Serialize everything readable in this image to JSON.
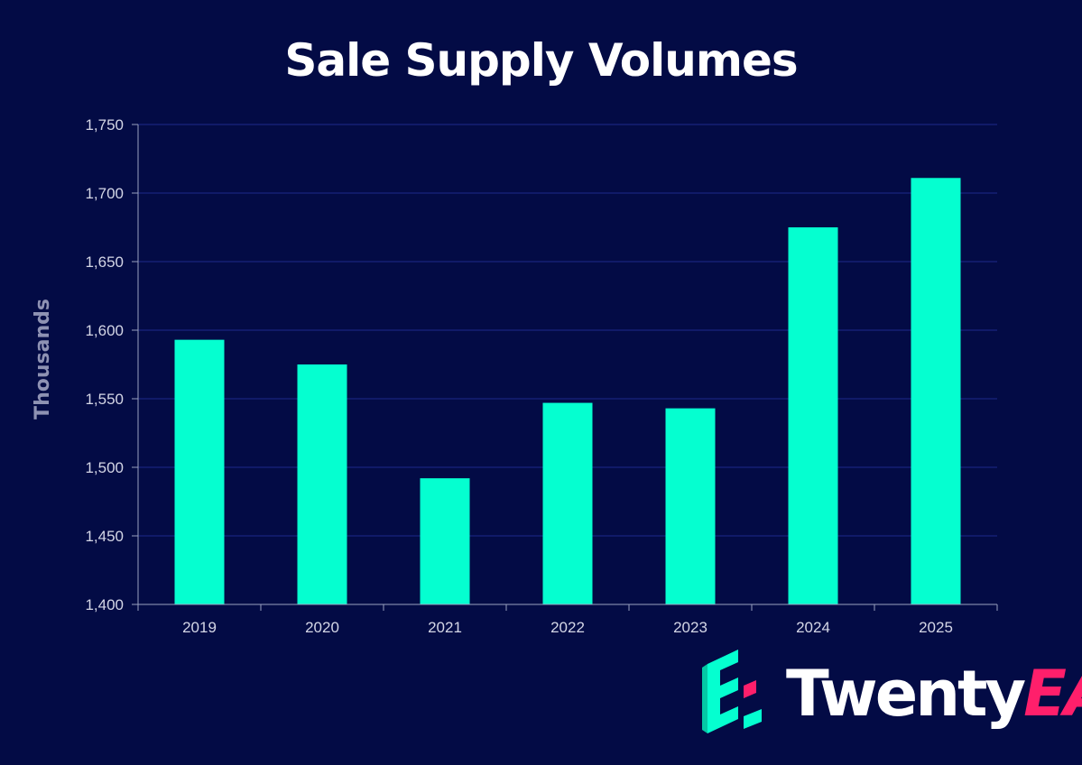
{
  "chart_data": {
    "type": "bar",
    "title": "Sale Supply Volumes",
    "xlabel": "",
    "ylabel": "Thousands",
    "categories": [
      "2019",
      "2020",
      "2021",
      "2022",
      "2023",
      "2024",
      "2025"
    ],
    "values": [
      1593,
      1575,
      1492,
      1547,
      1543,
      1675,
      1711
    ],
    "ylim": [
      1400,
      1750
    ],
    "yticks": [
      1400,
      1450,
      1500,
      1550,
      1600,
      1650,
      1700,
      1750
    ],
    "ytick_labels": [
      "1,400",
      "1,450",
      "1,500",
      "1,550",
      "1,600",
      "1,650",
      "1,700",
      "1,750"
    ],
    "grid": true,
    "legend": "none",
    "colors": {
      "background": "#030b45",
      "bar": "#05ffd0",
      "grid": "#1c2a8c",
      "axis": "#9aa0c0"
    }
  },
  "logo": {
    "word_white": "Twenty",
    "word_accent": "EA",
    "icon": "twentyea-e-icon",
    "colors": {
      "icon": "#05ffd0",
      "accent": "#ff1f6b",
      "text": "#ffffff"
    }
  }
}
